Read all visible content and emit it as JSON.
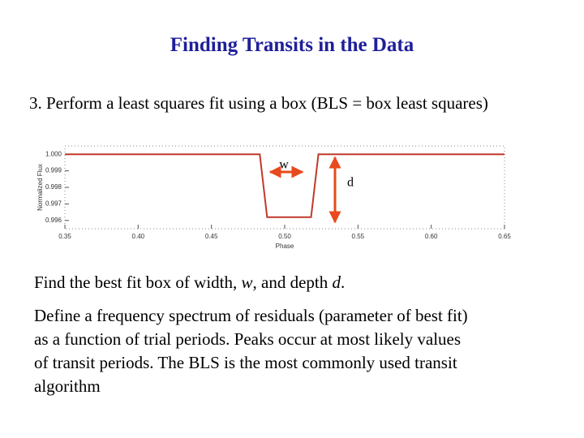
{
  "title": "Finding Transits in the Data",
  "step": "3.  Perform a least squares fit using a box (BLS = box least squares)",
  "chart_data": {
    "type": "line",
    "xlabel": "Phase",
    "ylabel": "Normalized Flux",
    "x": [
      0.35,
      0.483,
      0.488,
      0.518,
      0.523,
      0.65
    ],
    "series": [
      {
        "color": "#c0392b",
        "values": [
          1.0,
          1.0,
          0.9962,
          0.9962,
          1.0,
          1.0
        ]
      }
    ],
    "xlim": [
      0.35,
      0.65
    ],
    "ylim": [
      0.9955,
      1.0005
    ],
    "xticks": [
      {
        "value": 0.35,
        "label": "0.35"
      },
      {
        "value": 0.4,
        "label": "0.40"
      },
      {
        "value": 0.45,
        "label": "0.45"
      },
      {
        "value": 0.5,
        "label": "0.50"
      },
      {
        "value": 0.55,
        "label": "0.55"
      },
      {
        "value": 0.6,
        "label": "0.60"
      },
      {
        "value": 0.65,
        "label": "0.65"
      }
    ],
    "yticks": [
      {
        "value": 1.0,
        "label": "1.000"
      },
      {
        "value": 0.999,
        "label": "0.999"
      },
      {
        "value": 0.998,
        "label": "0.998"
      },
      {
        "value": 0.997,
        "label": "0.997"
      },
      {
        "value": 0.996,
        "label": "0.996"
      }
    ],
    "annotations": [
      "w",
      "d"
    ]
  },
  "paragraph1": [
    "Find the best fit box of width, ",
    "w",
    ", and depth ",
    "d",
    "."
  ],
  "paragraph2": [
    "Define a frequency spectrum of residuals (parameter of best fit)",
    "as a function of trial periods. Peaks occur at most likely values",
    "of transit periods. The BLS is the most commonly used transit",
    "algorithm"
  ]
}
